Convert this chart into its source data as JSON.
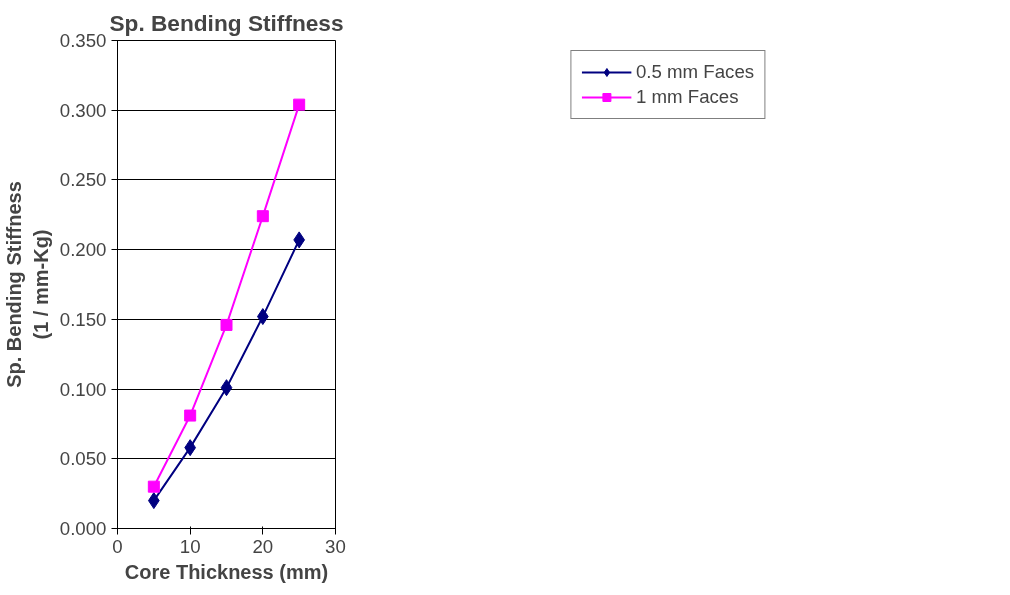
{
  "chart_data": {
    "type": "line",
    "title": "Sp. Bending Stiffness",
    "xlabel": "Core Thickness (mm)",
    "ylabel": "Sp. Bending Stiffness\n(1 / mm-Kg)",
    "x": [
      5,
      10,
      15,
      20,
      25
    ],
    "series": [
      {
        "name": "0.5 mm Faces",
        "color": "#000080",
        "marker": "diamond",
        "values": [
          0.02,
          0.058,
          0.101,
          0.152,
          0.207
        ]
      },
      {
        "name": "1 mm Faces",
        "color": "#ff00ff",
        "marker": "square",
        "values": [
          0.03,
          0.081,
          0.146,
          0.224,
          0.304
        ]
      }
    ],
    "xlim": [
      0,
      30
    ],
    "xticks": [
      0,
      10,
      20,
      30
    ],
    "ylim": [
      0,
      0.35
    ],
    "yticks": [
      {
        "value": 0,
        "label": "0.000"
      },
      {
        "value": 0.05,
        "label": "0.050"
      },
      {
        "value": 0.1,
        "label": "0.100"
      },
      {
        "value": 0.15,
        "label": "0.150"
      },
      {
        "value": 0.2,
        "label": "0.200"
      },
      {
        "value": 0.25,
        "label": "0.250"
      },
      {
        "value": 0.3,
        "label": "0.300"
      },
      {
        "value": 0.35,
        "label": "0.350"
      }
    ],
    "grid": "y",
    "legend": "top right",
    "line_style": "solid"
  }
}
